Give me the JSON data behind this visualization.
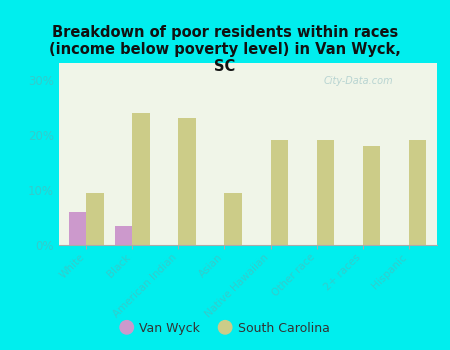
{
  "title": "Breakdown of poor residents within races\n(income below poverty level) in Van Wyck,\nSC",
  "categories": [
    "White",
    "Black",
    "American Indian",
    "Asian",
    "Native Hawaiian",
    "Other race",
    "2+ races",
    "Hispanic"
  ],
  "van_wyck": [
    6.0,
    3.5,
    0,
    0,
    0,
    0,
    0,
    0
  ],
  "south_carolina": [
    9.5,
    24.0,
    23.0,
    9.5,
    19.0,
    19.0,
    18.0,
    19.0
  ],
  "van_wyck_color": "#cc99cc",
  "sc_color": "#cccc88",
  "background_color": "#00eeee",
  "plot_bg_color": "#f0f5e8",
  "ylim": [
    0,
    33
  ],
  "yticks": [
    0,
    10,
    20,
    30
  ],
  "ytick_labels": [
    "0%",
    "10%",
    "20%",
    "30%"
  ],
  "bar_width": 0.38,
  "legend_van_wyck": "Van Wyck",
  "legend_sc": "South Carolina",
  "watermark": "City-Data.com",
  "title_color": "#111111",
  "tick_label_color": "#33cccc"
}
